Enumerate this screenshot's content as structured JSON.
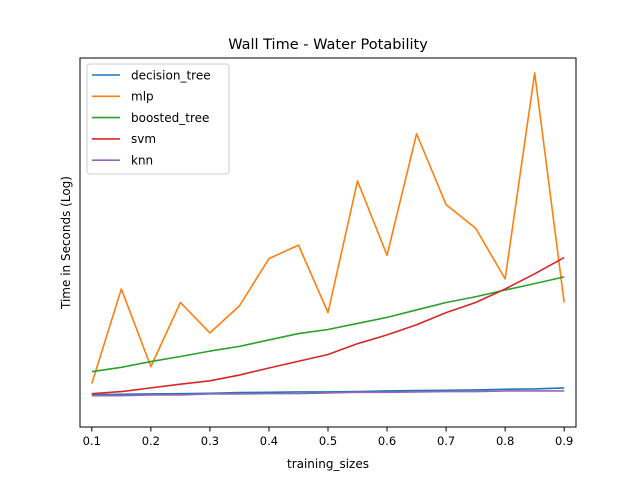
{
  "chart_data": {
    "type": "line",
    "title": "Wall Time - Water Potability",
    "xlabel": "training_sizes",
    "ylabel": "Time in Seconds (Log)",
    "xlim": [
      0.08,
      0.92
    ],
    "ylim": [
      0,
      100
    ],
    "yticks_shown": false,
    "x_ticks": [
      "0.1",
      "0.2",
      "0.3",
      "0.4",
      "0.5",
      "0.6",
      "0.7",
      "0.8",
      "0.9"
    ],
    "x": [
      0.1,
      0.15,
      0.2,
      0.25,
      0.3,
      0.35,
      0.4,
      0.45,
      0.5,
      0.55,
      0.6,
      0.65,
      0.7,
      0.75,
      0.8,
      0.85,
      0.9
    ],
    "grid": false,
    "legend_position": "top-left",
    "series": [
      {
        "name": "decision_tree",
        "color": "#1f77b4",
        "values": [
          4.7,
          4.8,
          4.9,
          5.0,
          5.1,
          5.3,
          5.4,
          5.5,
          5.5,
          5.6,
          5.8,
          5.9,
          6.0,
          6.1,
          6.3,
          6.4,
          6.7
        ]
      },
      {
        "name": "mlp",
        "color": "#ff7f0e",
        "values": [
          8.0,
          36.0,
          13.0,
          32.0,
          23.0,
          31.0,
          45.0,
          49.0,
          29.0,
          68.0,
          46.0,
          82.0,
          61.0,
          54.0,
          39.0,
          100.0,
          32.0
        ]
      },
      {
        "name": "boosted_tree",
        "color": "#2ca02c",
        "values": [
          11.5,
          12.8,
          14.5,
          16.0,
          17.6,
          19.0,
          20.9,
          22.8,
          24.0,
          25.8,
          27.6,
          29.8,
          32.0,
          33.7,
          35.7,
          37.6,
          39.6
        ]
      },
      {
        "name": "svm",
        "color": "#d62728",
        "values": [
          5.0,
          5.6,
          6.7,
          7.8,
          8.8,
          10.5,
          12.6,
          14.6,
          16.6,
          19.8,
          22.4,
          25.4,
          29.0,
          32.0,
          36.0,
          40.5,
          45.3
        ]
      },
      {
        "name": "knn",
        "color": "#9467bd",
        "values": [
          4.4,
          4.4,
          4.6,
          4.6,
          4.9,
          4.9,
          5.0,
          5.0,
          5.2,
          5.4,
          5.4,
          5.5,
          5.6,
          5.6,
          5.8,
          5.8,
          5.8
        ]
      }
    ]
  }
}
